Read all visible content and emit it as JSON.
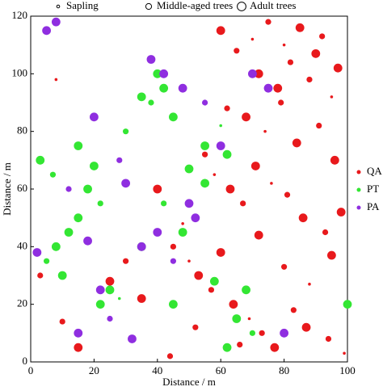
{
  "chart_data": {
    "type": "scatter",
    "x_label": "Distance / m",
    "y_label": "Distance / m",
    "xlim": [
      0,
      100
    ],
    "ylim": [
      0,
      120
    ],
    "xticks": [
      0,
      20,
      40,
      60,
      80,
      100
    ],
    "yticks": [
      0,
      20,
      40,
      60,
      80,
      100,
      120
    ],
    "size_legend": [
      "Sapling",
      "Middle-aged trees",
      "Adult trees"
    ],
    "series": [
      {
        "name": "QA",
        "color": "#e8191c",
        "x": [
          60,
          65,
          70,
          72,
          75,
          78,
          80,
          82,
          85,
          88,
          90,
          92,
          95,
          97,
          62,
          68,
          74,
          79,
          84,
          91,
          96,
          55,
          58,
          63,
          67,
          71,
          76,
          81,
          86,
          93,
          98,
          45,
          50,
          53,
          57,
          64,
          69,
          73,
          77,
          83,
          87,
          94,
          99,
          25,
          30,
          35,
          48,
          52,
          60,
          66,
          72,
          80,
          88,
          95,
          10,
          15,
          8,
          3,
          40,
          44
        ],
        "y": [
          115,
          108,
          112,
          100,
          118,
          95,
          110,
          104,
          116,
          98,
          107,
          113,
          92,
          102,
          88,
          85,
          80,
          90,
          76,
          82,
          70,
          72,
          65,
          60,
          55,
          68,
          62,
          58,
          50,
          45,
          52,
          40,
          35,
          30,
          25,
          20,
          15,
          10,
          5,
          18,
          12,
          8,
          3,
          28,
          35,
          22,
          48,
          12,
          38,
          6,
          44,
          33,
          27,
          37,
          14,
          5,
          98,
          30,
          60,
          2
        ],
        "sizes": [
          2,
          1,
          0,
          2,
          1,
          2,
          0,
          1,
          2,
          1,
          2,
          1,
          0,
          2,
          1,
          2,
          0,
          1,
          2,
          1,
          2,
          1,
          0,
          2,
          1,
          2,
          0,
          1,
          2,
          1,
          2,
          1,
          0,
          2,
          1,
          2,
          0,
          1,
          2,
          1,
          2,
          1,
          0,
          2,
          1,
          2,
          0,
          1,
          2,
          1,
          2,
          1,
          0,
          2,
          1,
          2,
          0,
          1,
          2,
          1
        ]
      },
      {
        "name": "PT",
        "color": "#33e633",
        "x": [
          40,
          42,
          38,
          45,
          35,
          30,
          55,
          60,
          62,
          20,
          18,
          22,
          15,
          12,
          8,
          5,
          10,
          25,
          28,
          45,
          48,
          58,
          65,
          70,
          62,
          55,
          3,
          7,
          15,
          22,
          35,
          42,
          50,
          68,
          100
        ],
        "y": [
          100,
          95,
          90,
          85,
          92,
          80,
          75,
          82,
          72,
          68,
          60,
          55,
          50,
          45,
          40,
          35,
          30,
          25,
          22,
          20,
          45,
          28,
          15,
          10,
          5,
          62,
          70,
          65,
          75,
          20,
          40,
          55,
          67,
          25,
          20
        ],
        "sizes": [
          2,
          2,
          1,
          2,
          2,
          1,
          2,
          0,
          2,
          2,
          2,
          1,
          2,
          2,
          2,
          1,
          2,
          2,
          0,
          2,
          2,
          2,
          2,
          1,
          2,
          2,
          2,
          1,
          2,
          2,
          2,
          1,
          2,
          2,
          2
        ]
      },
      {
        "name": "PA",
        "color": "#8f2ee0",
        "x": [
          5,
          8,
          20,
          28,
          30,
          35,
          40,
          45,
          50,
          15,
          22,
          2,
          12,
          38,
          42,
          48,
          55,
          60,
          70,
          75,
          80,
          25,
          32,
          18,
          52
        ],
        "y": [
          115,
          118,
          85,
          70,
          62,
          40,
          45,
          35,
          55,
          10,
          25,
          38,
          60,
          105,
          100,
          95,
          90,
          75,
          100,
          95,
          10,
          15,
          8,
          42,
          50
        ],
        "sizes": [
          2,
          2,
          2,
          1,
          2,
          2,
          2,
          1,
          2,
          2,
          2,
          2,
          1,
          2,
          2,
          2,
          1,
          2,
          2,
          2,
          2,
          1,
          2,
          2,
          2
        ]
      }
    ]
  }
}
